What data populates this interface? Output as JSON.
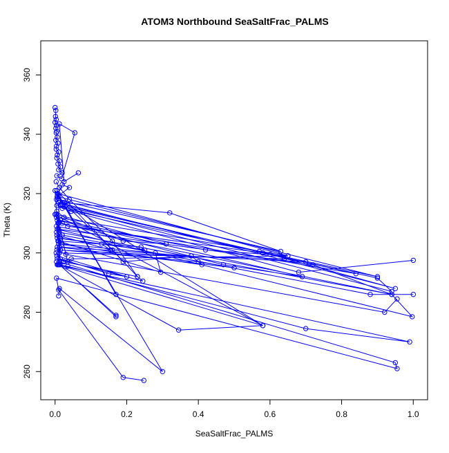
{
  "chart_data": {
    "type": "scatter",
    "title": "ATOM3 Northbound SeaSaltFrac_PALMS",
    "xlabel": "SeaSaltFrac_PALMS",
    "ylabel": "Theta (K)",
    "xlim": [
      -0.04,
      1.04
    ],
    "ylim": [
      250.5,
      371.5
    ],
    "xticks": [
      0.0,
      0.2,
      0.4,
      0.6,
      0.8,
      1.0
    ],
    "xtick_labels": [
      "0.0",
      "0.2",
      "0.4",
      "0.6",
      "0.8",
      "1.0"
    ],
    "yticks": [
      260,
      280,
      300,
      320,
      340,
      360
    ],
    "ytick_labels": [
      "260",
      "280",
      "300",
      "320",
      "340",
      "360"
    ],
    "grid": false,
    "color": "#0000ff",
    "marker": "open-circle",
    "connected": true,
    "series": [
      {
        "x": [
          0.0,
          0.002,
          0.001,
          0.003,
          0.0,
          0.004,
          0.002,
          0.005,
          0.003,
          0.006,
          0.002,
          0.008,
          0.004,
          0.003,
          0.01,
          0.006,
          0.005,
          0.012,
          0.008,
          0.015,
          0.01,
          0.02,
          0.005,
          0.018,
          0.055,
          0.012,
          0.025,
          0.065
        ],
        "y": [
          349,
          348,
          346,
          345,
          344,
          343,
          342,
          341,
          340.5,
          339,
          338,
          337,
          336,
          335,
          334,
          333,
          332,
          331,
          330,
          329,
          328,
          327,
          326,
          325,
          340.5,
          343.5,
          324,
          327
        ]
      },
      {
        "x": [
          0.003,
          0.012,
          0.04,
          0.16,
          0.23,
          0.005,
          0.01,
          0.17,
          0.008,
          0.02,
          0.32,
          0.63,
          0.004,
          0.015,
          0.57,
          0.9,
          0.006,
          0.03,
          0.6,
          0.95,
          0.01,
          0.02,
          0.9,
          0.94,
          0.005,
          0.045,
          0.68,
          1.0
        ],
        "y": [
          324,
          322,
          318,
          304,
          292,
          321,
          319,
          286,
          320,
          317,
          313.5,
          300.5,
          318,
          316,
          300.5,
          292,
          319,
          316,
          299.5,
          288,
          317,
          315,
          291.5,
          287,
          316,
          314,
          293.5,
          297.5
        ]
      },
      {
        "x": [
          0.005,
          0.025,
          0.19,
          0.31,
          0.003,
          0.015,
          0.42,
          0.65,
          0.004,
          0.02,
          0.47,
          0.69,
          0.006,
          0.035,
          0.58,
          0.84,
          0.008,
          0.01,
          0.72,
          0.94,
          0.004,
          0.012,
          0.94,
          0.997,
          0.006,
          0.02,
          0.88,
          1.0
        ],
        "y": [
          314,
          312,
          304,
          303,
          313,
          311,
          301,
          299,
          312,
          310,
          296,
          292,
          311,
          309,
          300,
          293,
          310,
          308,
          296,
          286,
          309,
          307,
          286,
          278.5,
          308,
          306,
          286,
          286
        ]
      },
      {
        "x": [
          0.004,
          0.015,
          0.13,
          0.155,
          0.005,
          0.01,
          0.24,
          0.25,
          0.006,
          0.02,
          0.28,
          0.295,
          0.008,
          0.012,
          0.38,
          0.41,
          0.01,
          0.015,
          0.4,
          0.5,
          0.006,
          0.012,
          0.64,
          0.7,
          0.005,
          0.03,
          0.92,
          0.955
        ],
        "y": [
          307,
          305,
          303,
          301,
          306,
          304,
          302,
          301,
          305,
          303,
          300,
          293.5,
          304,
          302,
          299,
          296,
          303,
          301,
          297,
          295,
          302,
          300,
          298,
          297,
          301,
          299.5,
          280,
          284.5
        ]
      },
      {
        "x": [
          0.003,
          0.015,
          0.15,
          0.2,
          0.005,
          0.025,
          0.23,
          0.245,
          0.006,
          0.012,
          0.17,
          0.17,
          0.004,
          0.01,
          0.345,
          0.58,
          0.008,
          0.035,
          0.7,
          0.99,
          0.006,
          0.012,
          0.95,
          0.955,
          0.004,
          0.01,
          0.19,
          0.248
        ],
        "y": [
          300,
          298,
          293,
          292,
          299,
          297,
          292,
          290.5,
          298,
          296,
          279,
          278.5,
          297,
          296,
          274,
          275.5,
          296,
          295.5,
          274.5,
          270,
          296,
          297,
          263,
          261,
          291.5,
          287.5,
          258,
          257
        ]
      },
      {
        "x": [
          0.01,
          0.012,
          0.3,
          0.0,
          0.014,
          0.01,
          0.025,
          0.58,
          0.0,
          0.01,
          0.035,
          0.045,
          0.65,
          0.008,
          0.02,
          0.04,
          0.006,
          0.16,
          0.19,
          0.38
        ],
        "y": [
          285.5,
          288,
          260,
          321,
          296,
          317,
          317,
          275.5,
          313,
          310,
          297,
          298,
          299,
          320,
          323,
          322,
          319,
          301,
          297,
          299
        ]
      }
    ]
  }
}
